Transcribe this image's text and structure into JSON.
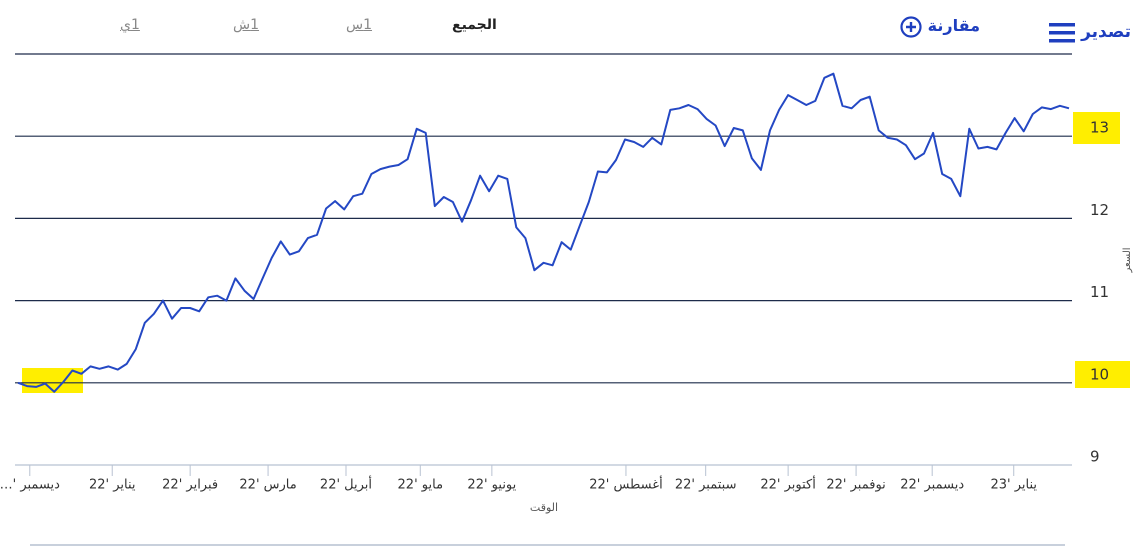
{
  "toolbar": {
    "export": "تصدير",
    "compare": "مقارنة",
    "ranges": [
      "الجميع",
      "1س",
      "1ش",
      "1ي"
    ]
  },
  "chart_data": {
    "type": "line",
    "y_axis_title": "السعر",
    "x_axis_title": "الوقت",
    "color": "#2448c4",
    "grid": true,
    "values": [
      10.0,
      9.96,
      9.95,
      9.99,
      9.89,
      10.01,
      10.15,
      10.11,
      10.2,
      10.17,
      10.2,
      10.16,
      10.23,
      10.41,
      10.73,
      10.84,
      11.0,
      10.78,
      10.91,
      10.91,
      10.87,
      11.04,
      11.06,
      11.0,
      11.27,
      11.12,
      11.02,
      11.27,
      11.52,
      11.72,
      11.56,
      11.6,
      11.76,
      11.8,
      12.12,
      12.21,
      12.11,
      12.27,
      12.3,
      12.54,
      12.6,
      12.63,
      12.65,
      12.72,
      13.09,
      13.04,
      12.15,
      12.26,
      12.2,
      11.96,
      12.22,
      12.52,
      12.33,
      12.52,
      12.48,
      11.89,
      11.76,
      11.37,
      11.46,
      11.43,
      11.71,
      11.62,
      11.91,
      12.2,
      12.57,
      12.56,
      12.71,
      12.96,
      12.93,
      12.87,
      12.98,
      12.9,
      13.32,
      13.34,
      13.38,
      13.33,
      13.21,
      13.13,
      12.88,
      13.1,
      13.07,
      12.73,
      12.59,
      13.07,
      13.32,
      13.5,
      13.44,
      13.38,
      13.43,
      13.71,
      13.76,
      13.37,
      13.34,
      13.44,
      13.48,
      13.07,
      12.98,
      12.96,
      12.89,
      12.72,
      12.79,
      13.04,
      12.54,
      12.48,
      12.27,
      13.09,
      12.85,
      12.87,
      12.84,
      13.04,
      13.22,
      13.06,
      13.27,
      13.35,
      13.33,
      13.37,
      13.34
    ],
    "xlim": [
      0,
      116
    ],
    "xticks": [
      {
        "value": 1.3,
        "label": "ديسمبر '…"
      },
      {
        "value": 10.4,
        "label": "يناير '22"
      },
      {
        "value": 19,
        "label": "فبراير '22"
      },
      {
        "value": 27.6,
        "label": "مارس '22"
      },
      {
        "value": 36.2,
        "label": "أبريل '22"
      },
      {
        "value": 44.4,
        "label": "مايو '22"
      },
      {
        "value": 52.3,
        "label": "يونيو '22"
      },
      {
        "value": 67.1,
        "label": "أغسطس '22"
      },
      {
        "value": 75.9,
        "label": "سبتمبر '22"
      },
      {
        "value": 85,
        "label": "أكتوبر '22"
      },
      {
        "value": 92.5,
        "label": "نوفمبر '22"
      },
      {
        "value": 100.9,
        "label": "ديسمبر '22"
      },
      {
        "value": 109.9,
        "label": "يناير '23"
      }
    ],
    "ylim": [
      9,
      14
    ],
    "yticks": [
      9,
      10,
      11,
      12,
      13
    ]
  }
}
